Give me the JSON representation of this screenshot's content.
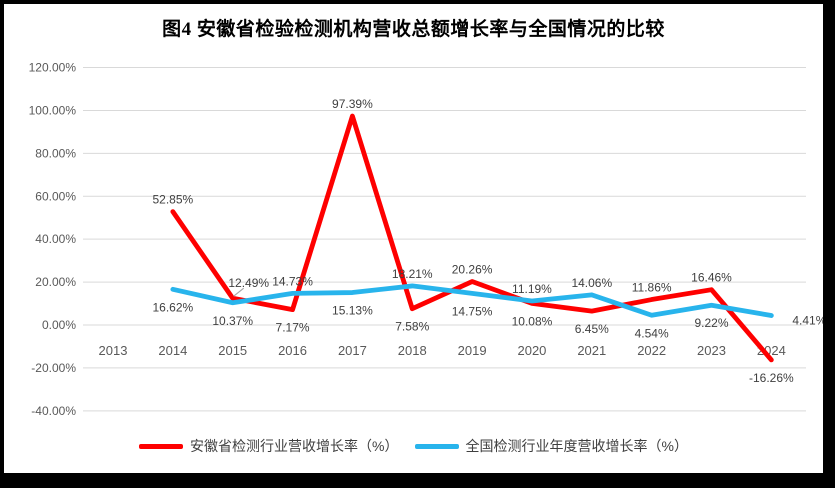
{
  "title": "图4  安徽省检验检测机构营收总额增长率与全国情况的比较",
  "chart_data": {
    "type": "line",
    "x": [
      "2013",
      "2014",
      "2015",
      "2016",
      "2017",
      "2018",
      "2019",
      "2020",
      "2021",
      "2022",
      "2023",
      "2024"
    ],
    "series": [
      {
        "name": "安徽省检测行业营收增长率（%）",
        "color": "#fe0000",
        "values": [
          null,
          52.85,
          12.49,
          7.17,
          97.39,
          7.58,
          20.26,
          10.08,
          6.45,
          11.86,
          16.46,
          -16.26
        ],
        "label_sides": [
          null,
          "above",
          "leader",
          "below",
          "above",
          "below",
          "above",
          "below",
          "below",
          "above",
          "above",
          "below"
        ]
      },
      {
        "name": "全国检测行业年度营收增长率（%）",
        "color": "#28b4ec",
        "values": [
          null,
          16.62,
          10.37,
          14.73,
          15.13,
          18.21,
          14.75,
          11.19,
          14.06,
          4.54,
          9.22,
          4.41
        ],
        "label_sides": [
          null,
          "below",
          "below",
          "above",
          "below",
          "above",
          "below",
          "above",
          "above",
          "below",
          "below",
          "right"
        ]
      }
    ],
    "yticks": [
      {
        "value": 120,
        "label": "120.00%"
      },
      {
        "value": 100,
        "label": "100.00%"
      },
      {
        "value": 80,
        "label": "80.00%"
      },
      {
        "value": 60,
        "label": "60.00%"
      },
      {
        "value": 40,
        "label": "40.00%"
      },
      {
        "value": 20,
        "label": "20.00%"
      },
      {
        "value": 0,
        "label": "0.00%"
      },
      {
        "value": -20,
        "label": "-20.00%"
      },
      {
        "value": -40,
        "label": "-40.00%"
      }
    ],
    "ylim": [
      -40,
      120
    ],
    "grid": true,
    "legend_position": "bottom"
  }
}
